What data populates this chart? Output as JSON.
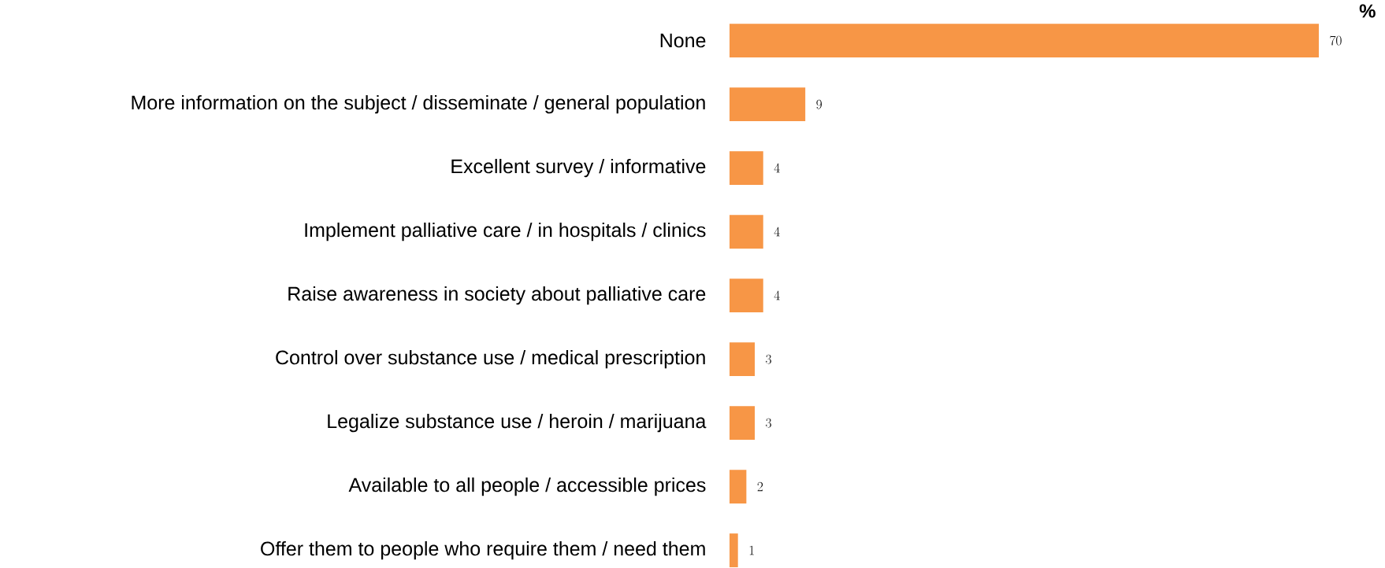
{
  "chart_data": {
    "type": "bar",
    "orientation": "horizontal",
    "categories": [
      "None",
      "More information on the subject / disseminate / general population",
      "Excellent survey / informative",
      "Implement palliative care / in hospitals / clinics",
      "Raise awareness in society about palliative care",
      "Control over substance use / medical prescription",
      "Legalize substance use / heroin / marijuana",
      "Available to all people / accessible prices",
      "Offer them to people who require them / need them"
    ],
    "values": [
      70,
      9,
      4,
      4,
      4,
      3,
      3,
      2,
      1
    ],
    "color": "#f79646",
    "data_labels": true,
    "annotations": [
      "%"
    ]
  }
}
